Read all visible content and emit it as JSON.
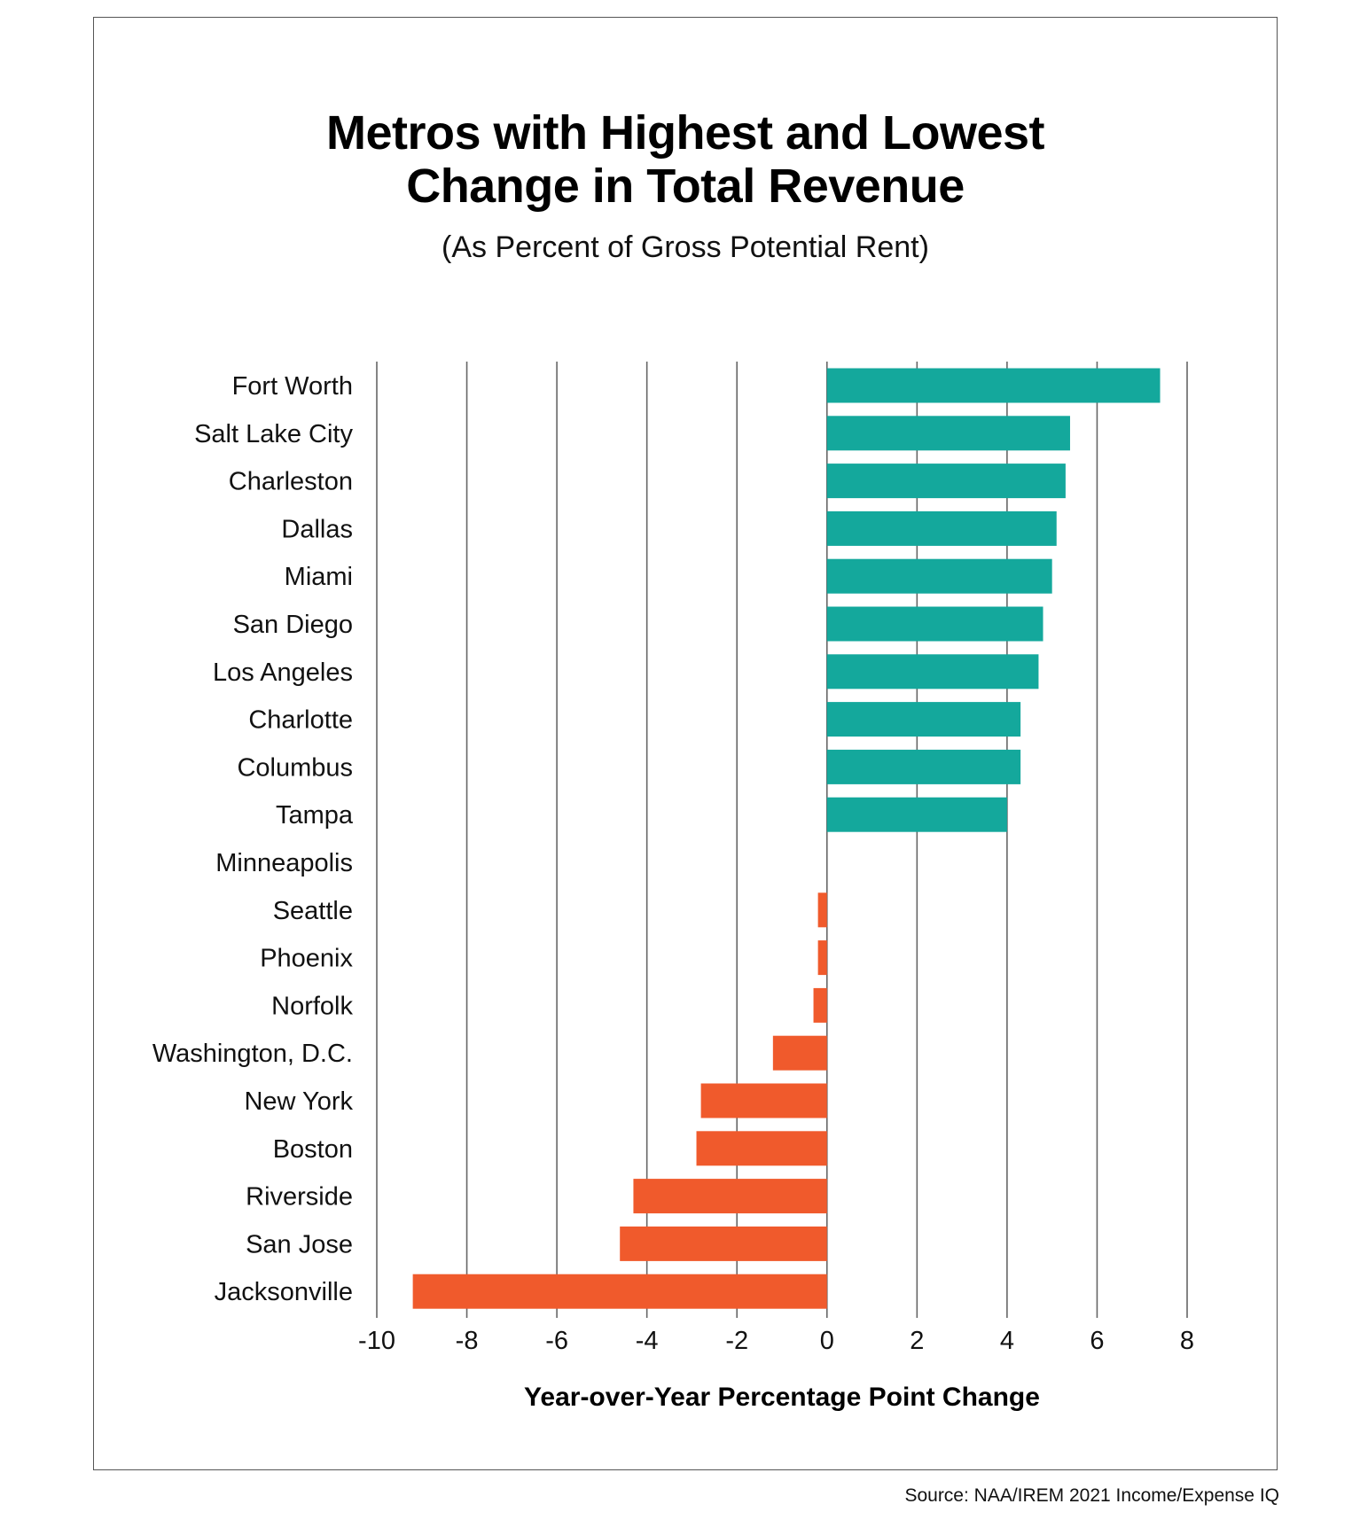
{
  "chart_data": {
    "type": "bar",
    "orientation": "horizontal",
    "title": "Metros with Highest and Lowest Change in Total Revenue",
    "title_lines": [
      "Metros with Highest and Lowest",
      "Change in Total Revenue"
    ],
    "subtitle": "(As Percent of Gross Potential Rent)",
    "xlabel": "Year-over-Year Percentage Point Change",
    "ylabel": "",
    "xlim": [
      -10,
      8
    ],
    "xticks": [
      -10,
      -8,
      -6,
      -4,
      -2,
      0,
      2,
      4,
      6,
      8
    ],
    "grid": "vertical",
    "categories": [
      "Fort Worth",
      "Salt Lake City",
      "Charleston",
      "Dallas",
      "Miami",
      "San Diego",
      "Los Angeles",
      "Charlotte",
      "Columbus",
      "Tampa",
      "Minneapolis",
      "Seattle",
      "Phoenix",
      "Norfolk",
      "Washington, D.C.",
      "New York",
      "Boston",
      "Riverside",
      "San Jose",
      "Jacksonville"
    ],
    "values": [
      7.4,
      5.4,
      5.3,
      5.1,
      5.0,
      4.8,
      4.7,
      4.3,
      4.3,
      4.0,
      0,
      -0.2,
      -0.2,
      -0.3,
      -1.2,
      -2.8,
      -2.9,
      -4.3,
      -4.6,
      -9.2
    ],
    "colors": {
      "positive": "#14a89c",
      "negative": "#f05a2c",
      "grid": "#666666"
    },
    "source": "Source:  NAA/IREM 2021 Income/Expense IQ"
  }
}
